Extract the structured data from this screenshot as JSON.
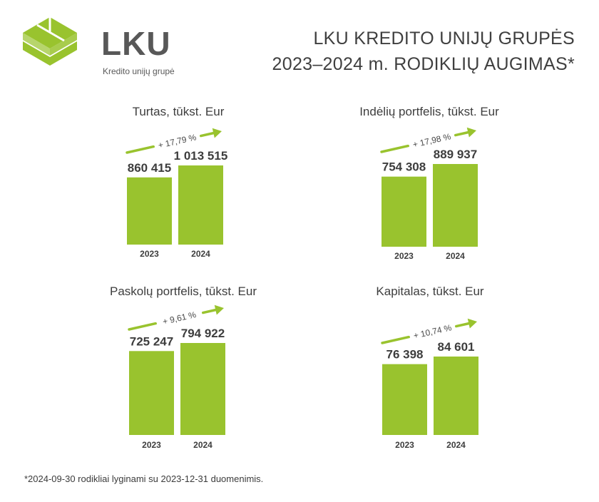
{
  "brand": {
    "name": "LKU",
    "tagline": "Kredito unijų grupė",
    "color": "#99c32e"
  },
  "header": {
    "title_line1": "LKU KREDITO UNIJŲ GRUPĖS",
    "title_line2": "2023–2024 m. RODIKLIŲ AUGIMAS*"
  },
  "footnote": "*2024-09-30 rodikliai lyginami su 2023-12-31 duomenimis.",
  "colors": {
    "bar": "#99c32e",
    "arrow": "#99c32e",
    "text": "#3d3d3d"
  },
  "chart_data": [
    {
      "type": "bar",
      "title": "Turtas, tūkst. Eur",
      "categories": [
        "2023",
        "2024"
      ],
      "values": [
        860415,
        1013515
      ],
      "value_labels": [
        "860 415",
        "1 013 515"
      ],
      "growth_label": "+ 17,79 %"
    },
    {
      "type": "bar",
      "title": "Indėlių portfelis, tūkst. Eur",
      "categories": [
        "2023",
        "2024"
      ],
      "values": [
        754308,
        889937
      ],
      "value_labels": [
        "754 308",
        "889 937"
      ],
      "growth_label": "+ 17,98 %"
    },
    {
      "type": "bar",
      "title": "Paskolų portfelis, tūkst. Eur",
      "categories": [
        "2023",
        "2024"
      ],
      "values": [
        725247,
        794922
      ],
      "value_labels": [
        "725 247",
        "794 922"
      ],
      "growth_label": "+ 9,61 %"
    },
    {
      "type": "bar",
      "title": "Kapitalas, tūkst. Eur",
      "categories": [
        "2023",
        "2024"
      ],
      "values": [
        76398,
        84601
      ],
      "value_labels": [
        "76 398",
        "84 601"
      ],
      "growth_label": "+ 10,74 %"
    }
  ]
}
